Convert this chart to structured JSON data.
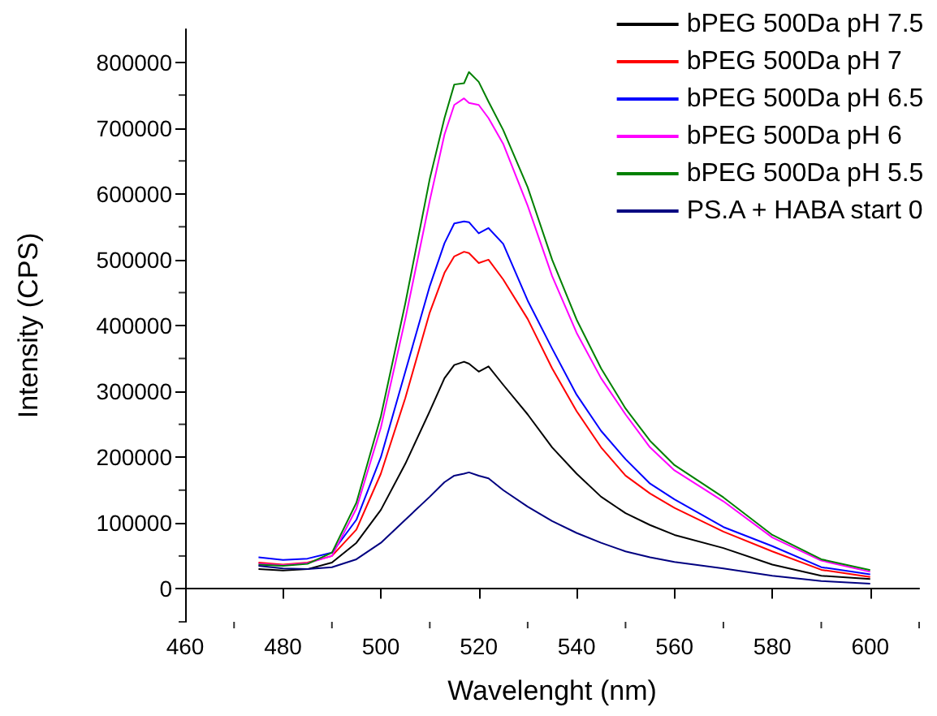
{
  "chart_data": {
    "type": "line",
    "xlabel": "Wavelenght (nm)",
    "ylabel": "Intensity (CPS)",
    "x": [
      475,
      480,
      485,
      490,
      495,
      500,
      505,
      510,
      513,
      515,
      517,
      518,
      520,
      522,
      525,
      530,
      535,
      540,
      545,
      550,
      555,
      560,
      570,
      580,
      590,
      600
    ],
    "series": [
      {
        "name": "bPEG 500Da pH 7.5",
        "color": "#000000",
        "values": [
          30000,
          28000,
          30000,
          40000,
          70000,
          120000,
          190000,
          270000,
          320000,
          340000,
          345000,
          342000,
          330000,
          338000,
          310000,
          265000,
          215000,
          175000,
          140000,
          115000,
          97000,
          82000,
          62000,
          37000,
          20000,
          15000
        ]
      },
      {
        "name": "bPEG 500Da pH 7",
        "color": "#ff0000",
        "values": [
          40000,
          37000,
          40000,
          50000,
          90000,
          175000,
          290000,
          420000,
          480000,
          505000,
          512000,
          510000,
          495000,
          500000,
          470000,
          410000,
          335000,
          270000,
          215000,
          172000,
          145000,
          123000,
          87000,
          57000,
          29000,
          18000
        ]
      },
      {
        "name": "bPEG 500Da pH 6.5",
        "color": "#0000ff",
        "values": [
          48000,
          44000,
          46000,
          55000,
          105000,
          200000,
          330000,
          460000,
          525000,
          555000,
          558000,
          557000,
          540000,
          548000,
          524000,
          438000,
          365000,
          295000,
          240000,
          197000,
          160000,
          136000,
          94000,
          65000,
          33000,
          22000
        ]
      },
      {
        "name": "bPEG 500Da pH 6",
        "color": "#ff00ff",
        "values": [
          38000,
          36000,
          39000,
          50000,
          122000,
          245000,
          410000,
          590000,
          690000,
          735000,
          745000,
          738000,
          735000,
          715000,
          676000,
          582000,
          475000,
          389000,
          320000,
          265000,
          215000,
          180000,
          133000,
          78000,
          43000,
          26000
        ]
      },
      {
        "name": "bPEG 500Da pH 5.5",
        "color": "#008000",
        "values": [
          37000,
          35000,
          38000,
          55000,
          131000,
          262000,
          434000,
          623000,
          715000,
          766000,
          768000,
          785000,
          770000,
          740000,
          697000,
          610000,
          500000,
          409000,
          335000,
          274000,
          225000,
          188000,
          139000,
          82000,
          45000,
          28500
        ]
      },
      {
        "name": "PS.A + HABA start 0",
        "color": "#000080",
        "values": [
          35000,
          31000,
          30000,
          33000,
          45000,
          70000,
          105000,
          140000,
          162000,
          172000,
          175000,
          177000,
          172000,
          168000,
          150000,
          125000,
          103000,
          85000,
          70000,
          57000,
          48000,
          41000,
          31000,
          20000,
          12000,
          8000
        ]
      }
    ],
    "xlim": [
      460,
      610
    ],
    "xticks": [
      460,
      480,
      500,
      520,
      540,
      560,
      580,
      600
    ],
    "ylim": [
      -50000,
      850000
    ],
    "yticks": [
      0,
      100000,
      200000,
      300000,
      400000,
      500000,
      600000,
      700000,
      800000
    ],
    "grid": false,
    "legend": "top right",
    "marker": "none",
    "line_style": "solid"
  }
}
